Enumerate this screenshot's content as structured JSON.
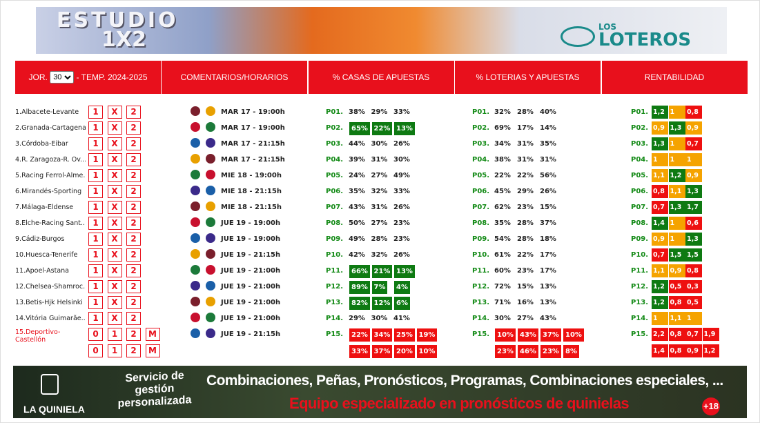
{
  "banner": {
    "title_line1": "ESTUDIO",
    "title_line2": "1X2",
    "brand_small": "LOS",
    "brand": "LOTEROS"
  },
  "header": {
    "jor": "JOR.",
    "jornada": "30",
    "temp": "- TEMP. 2024-2025",
    "columns": [
      "COMENTARIOS/HORARIOS",
      "% CASAS DE APUESTAS",
      "% LOTERIAS Y APUESTAS",
      "RENTABILIDAD"
    ]
  },
  "rows": [
    {
      "name": "1.Albacete-Levante",
      "options": [
        [
          "1",
          "X",
          "2"
        ]
      ],
      "time": "MAR 17 - 19:00h",
      "code": "P01.",
      "casas": [
        [
          "38%",
          "29%",
          "33%"
        ]
      ],
      "casas_highlight": false,
      "loterias": [
        [
          "32%",
          "28%",
          "40%"
        ]
      ],
      "rent": [
        [
          "1,2",
          "1",
          "0,8"
        ]
      ],
      "rent_colors": [
        [
          "green",
          "orange",
          "red"
        ]
      ]
    },
    {
      "name": "2.Granada-Cartagena",
      "options": [
        [
          "1",
          "X",
          "2"
        ]
      ],
      "time": "MAR 17 - 19:00h",
      "code": "P02.",
      "casas": [
        [
          "65%",
          "22%",
          "13%"
        ]
      ],
      "casas_highlight": true,
      "loterias": [
        [
          "69%",
          "17%",
          "14%"
        ]
      ],
      "rent": [
        [
          "0,9",
          "1,3",
          "0,9"
        ]
      ],
      "rent_colors": [
        [
          "orange",
          "green",
          "orange"
        ]
      ]
    },
    {
      "name": "3.Córdoba-Eibar",
      "options": [
        [
          "1",
          "X",
          "2"
        ]
      ],
      "time": "MAR 17 - 21:15h",
      "code": "P03.",
      "casas": [
        [
          "44%",
          "30%",
          "26%"
        ]
      ],
      "casas_highlight": false,
      "loterias": [
        [
          "34%",
          "31%",
          "35%"
        ]
      ],
      "rent": [
        [
          "1,3",
          "1",
          "0,7"
        ]
      ],
      "rent_colors": [
        [
          "green",
          "orange",
          "red"
        ]
      ]
    },
    {
      "name": "4.R. Zaragoza-R. Ov...",
      "options": [
        [
          "1",
          "X",
          "2"
        ]
      ],
      "time": "MAR 17 - 21:15h",
      "code": "P04.",
      "casas": [
        [
          "39%",
          "31%",
          "30%"
        ]
      ],
      "casas_highlight": false,
      "loterias": [
        [
          "38%",
          "31%",
          "31%"
        ]
      ],
      "rent": [
        [
          "1",
          "1",
          "1"
        ]
      ],
      "rent_colors": [
        [
          "orange",
          "orange",
          "orange"
        ]
      ]
    },
    {
      "name": "5.Racing Ferrol-Alme...",
      "options": [
        [
          "1",
          "X",
          "2"
        ]
      ],
      "time": "MIE 18 - 19:00h",
      "code": "P05.",
      "casas": [
        [
          "24%",
          "27%",
          "49%"
        ]
      ],
      "casas_highlight": false,
      "loterias": [
        [
          "22%",
          "22%",
          "56%"
        ]
      ],
      "rent": [
        [
          "1,1",
          "1,2",
          "0,9"
        ]
      ],
      "rent_colors": [
        [
          "orange",
          "green",
          "orange"
        ]
      ]
    },
    {
      "name": "6.Mirandés-Sporting",
      "options": [
        [
          "1",
          "X",
          "2"
        ]
      ],
      "time": "MIE 18 - 21:15h",
      "code": "P06.",
      "casas": [
        [
          "35%",
          "32%",
          "33%"
        ]
      ],
      "casas_highlight": false,
      "loterias": [
        [
          "45%",
          "29%",
          "26%"
        ]
      ],
      "rent": [
        [
          "0,8",
          "1,1",
          "1,3"
        ]
      ],
      "rent_colors": [
        [
          "red",
          "orange",
          "green"
        ]
      ]
    },
    {
      "name": "7.Málaga-Eldense",
      "options": [
        [
          "1",
          "X",
          "2"
        ]
      ],
      "time": "MIE 18 - 21:15h",
      "code": "P07.",
      "casas": [
        [
          "43%",
          "31%",
          "26%"
        ]
      ],
      "casas_highlight": false,
      "loterias": [
        [
          "62%",
          "23%",
          "15%"
        ]
      ],
      "rent": [
        [
          "0,7",
          "1,3",
          "1,7"
        ]
      ],
      "rent_colors": [
        [
          "red",
          "green",
          "green"
        ]
      ]
    },
    {
      "name": "8.Elche-Racing Sant...",
      "options": [
        [
          "1",
          "X",
          "2"
        ]
      ],
      "time": "JUE 19 - 19:00h",
      "code": "P08.",
      "casas": [
        [
          "50%",
          "27%",
          "23%"
        ]
      ],
      "casas_highlight": false,
      "loterias": [
        [
          "35%",
          "28%",
          "37%"
        ]
      ],
      "rent": [
        [
          "1,4",
          "1",
          "0,6"
        ]
      ],
      "rent_colors": [
        [
          "green",
          "orange",
          "red"
        ]
      ]
    },
    {
      "name": "9.Cádiz-Burgos",
      "options": [
        [
          "1",
          "X",
          "2"
        ]
      ],
      "time": "JUE 19 - 19:00h",
      "code": "P09.",
      "casas": [
        [
          "49%",
          "28%",
          "23%"
        ]
      ],
      "casas_highlight": false,
      "loterias": [
        [
          "54%",
          "28%",
          "18%"
        ]
      ],
      "rent": [
        [
          "0,9",
          "1",
          "1,3"
        ]
      ],
      "rent_colors": [
        [
          "orange",
          "orange",
          "green"
        ]
      ]
    },
    {
      "name": "10.Huesca-Tenerife",
      "options": [
        [
          "1",
          "X",
          "2"
        ]
      ],
      "time": "JUE 19 - 21:15h",
      "code": "P10.",
      "casas": [
        [
          "42%",
          "32%",
          "26%"
        ]
      ],
      "casas_highlight": false,
      "loterias": [
        [
          "61%",
          "22%",
          "17%"
        ]
      ],
      "rent": [
        [
          "0,7",
          "1,5",
          "1,5"
        ]
      ],
      "rent_colors": [
        [
          "red",
          "green",
          "green"
        ]
      ]
    },
    {
      "name": "11.Apoel-Astana",
      "options": [
        [
          "1",
          "X",
          "2"
        ]
      ],
      "time": "JUE 19 - 21:00h",
      "code": "P11.",
      "casas": [
        [
          "66%",
          "21%",
          "13%"
        ]
      ],
      "casas_highlight": true,
      "loterias": [
        [
          "60%",
          "23%",
          "17%"
        ]
      ],
      "rent": [
        [
          "1,1",
          "0,9",
          "0,8"
        ]
      ],
      "rent_colors": [
        [
          "orange",
          "orange",
          "red"
        ]
      ]
    },
    {
      "name": "12.Chelsea-Shamroc...",
      "options": [
        [
          "1",
          "X",
          "2"
        ]
      ],
      "time": "JUE 19 - 21:00h",
      "code": "P12.",
      "casas": [
        [
          "89%",
          "7%",
          "4%"
        ]
      ],
      "casas_highlight": true,
      "loterias": [
        [
          "72%",
          "15%",
          "13%"
        ]
      ],
      "rent": [
        [
          "1,2",
          "0,5",
          "0,3"
        ]
      ],
      "rent_colors": [
        [
          "green",
          "red",
          "red"
        ]
      ]
    },
    {
      "name": "13.Betis-Hjk Helsinki",
      "options": [
        [
          "1",
          "X",
          "2"
        ]
      ],
      "time": "JUE 19 - 21:00h",
      "code": "P13.",
      "casas": [
        [
          "82%",
          "12%",
          "6%"
        ]
      ],
      "casas_highlight": true,
      "loterias": [
        [
          "71%",
          "16%",
          "13%"
        ]
      ],
      "rent": [
        [
          "1,2",
          "0,8",
          "0,5"
        ]
      ],
      "rent_colors": [
        [
          "green",
          "red",
          "red"
        ]
      ]
    },
    {
      "name": "14.Vitória Guimarãe...",
      "options": [
        [
          "1",
          "X",
          "2"
        ]
      ],
      "time": "JUE 19 - 21:00h",
      "code": "P14.",
      "casas": [
        [
          "29%",
          "30%",
          "41%"
        ]
      ],
      "casas_highlight": false,
      "loterias": [
        [
          "30%",
          "27%",
          "43%"
        ]
      ],
      "rent": [
        [
          "1",
          "1,1",
          "1"
        ]
      ],
      "rent_colors": [
        [
          "orange",
          "orange",
          "orange"
        ]
      ]
    },
    {
      "name": "15.Deportivo-Castellón",
      "options": [
        [
          "0",
          "1",
          "2",
          "M"
        ],
        [
          "0",
          "1",
          "2",
          "M"
        ]
      ],
      "time": "JUE 19 - 21:15h",
      "code": "P15.",
      "casas": [
        [
          "22%",
          "34%",
          "25%",
          "19%"
        ],
        [
          "33%",
          "37%",
          "20%",
          "10%"
        ]
      ],
      "casas_highlight": false,
      "casas_red": true,
      "loterias": [
        [
          "10%",
          "43%",
          "37%",
          "10%"
        ],
        [
          "23%",
          "46%",
          "23%",
          "8%"
        ]
      ],
      "rent": [
        [
          "2,2",
          "0,8",
          "0,7",
          "1,9"
        ],
        [
          "1,4",
          "0,8",
          "0,9",
          "1,2"
        ]
      ],
      "rent_colors": [
        [
          "red",
          "red",
          "red",
          "red"
        ],
        [
          "red",
          "red",
          "red",
          "red"
        ]
      ]
    }
  ],
  "footer": {
    "brand": "LA QUINIELA",
    "service": "Servicio de gestión personalizada",
    "headline": "Combinaciones, Peñas, Pronósticos, Programas, Combinaciones especiales, ...",
    "subline": "Equipo especializado en pronósticos de quinielas",
    "age": "+18"
  }
}
